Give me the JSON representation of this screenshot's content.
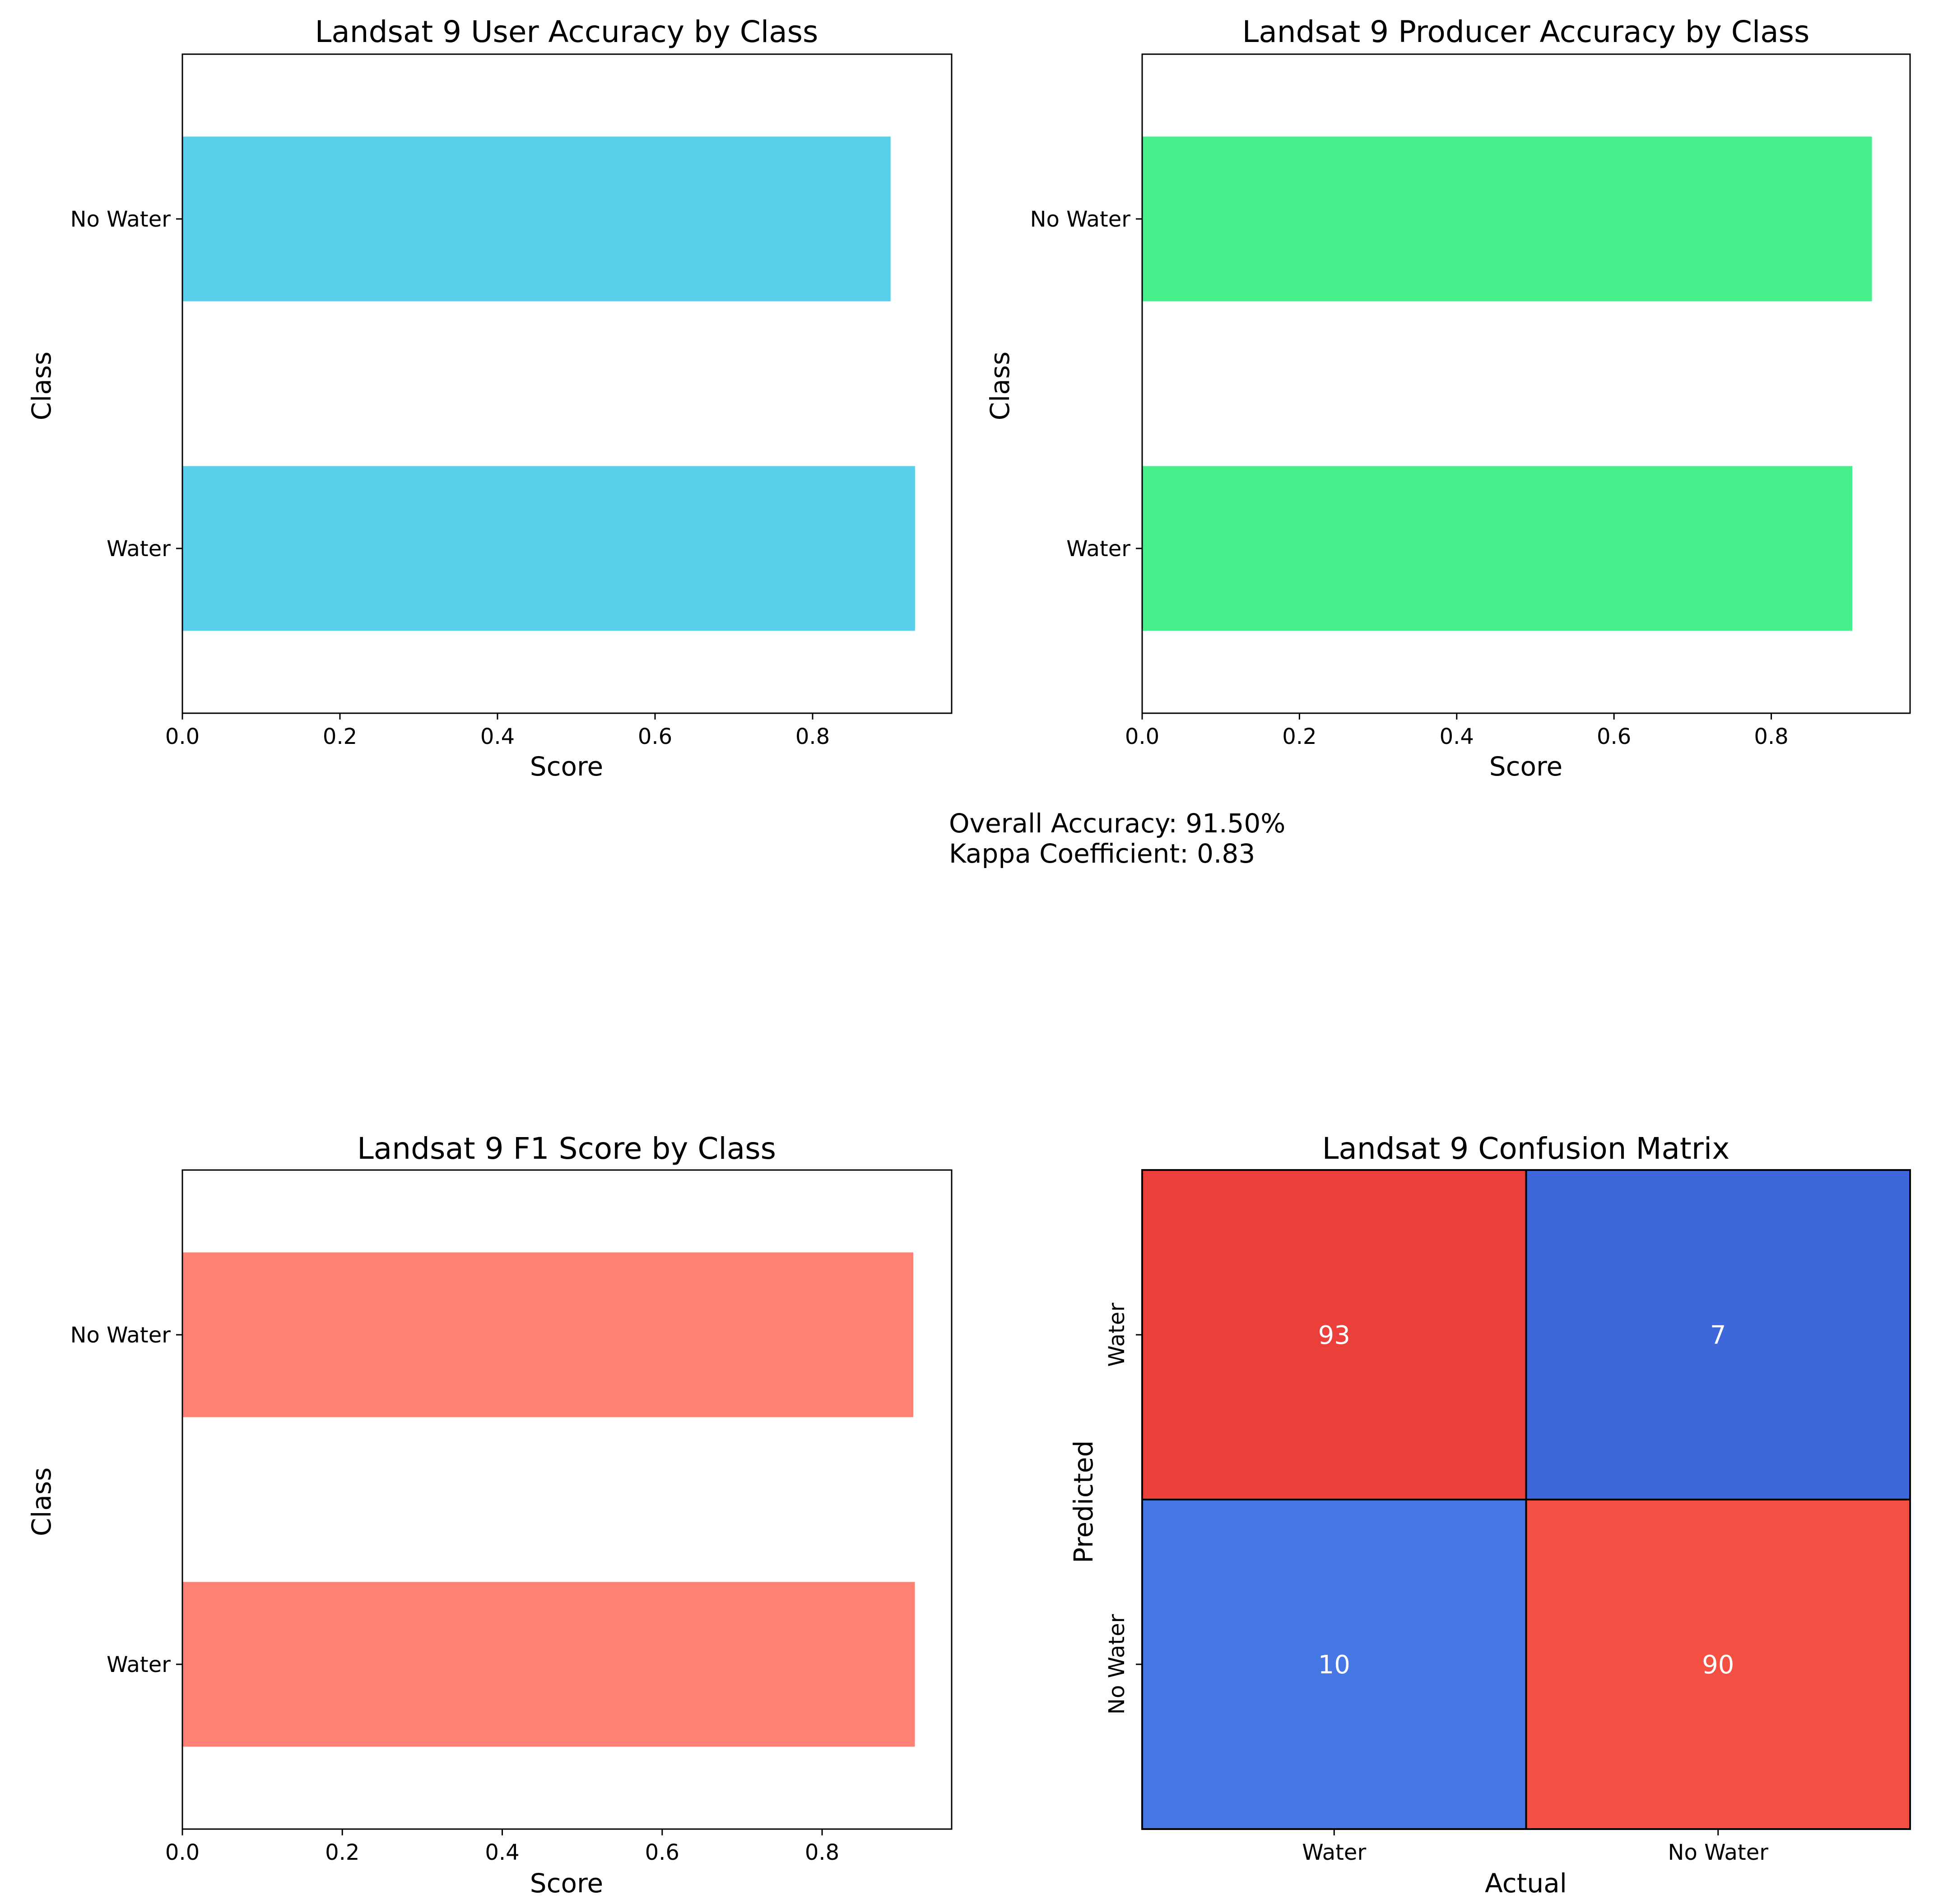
{
  "chart_data": [
    {
      "type": "bar",
      "orientation": "horizontal",
      "title": "Landsat 9 User Accuracy by Class",
      "xlabel": "Score",
      "ylabel": "Class",
      "categories": [
        "No Water",
        "Water"
      ],
      "values": [
        0.899,
        0.93
      ],
      "xlim": [
        0.0,
        0.9765
      ],
      "xticks": [
        "0.0",
        "0.2",
        "0.4",
        "0.6",
        "0.8"
      ],
      "color": "#5ACFEB"
    },
    {
      "type": "bar",
      "orientation": "horizontal",
      "title": "Landsat 9 Producer Accuracy by Class",
      "xlabel": "Score",
      "ylabel": "Class",
      "categories": [
        "No Water",
        "Water"
      ],
      "values": [
        0.928,
        0.903
      ],
      "xlim": [
        0.0,
        0.9765
      ],
      "xticks": [
        "0.0",
        "0.2",
        "0.4",
        "0.6",
        "0.8"
      ],
      "color": "#45F08C"
    },
    {
      "type": "bar",
      "orientation": "horizontal",
      "title": "Landsat 9 F1 Score by Class",
      "xlabel": "Score",
      "ylabel": "Class",
      "categories": [
        "No Water",
        "Water"
      ],
      "values": [
        0.914,
        0.916
      ],
      "xlim": [
        0.0,
        0.962
      ],
      "xticks": [
        "0.0",
        "0.2",
        "0.4",
        "0.6",
        "0.8"
      ],
      "color": "#FF8274"
    },
    {
      "type": "heatmap",
      "title": "Landsat 9 Confusion Matrix",
      "xlabel": "Actual",
      "ylabel": "Predicted",
      "row_labels": [
        "Water",
        "No Water"
      ],
      "col_labels": [
        "Water",
        "No Water"
      ],
      "values": [
        [
          93,
          7
        ],
        [
          10,
          90
        ]
      ],
      "cell_colors": [
        [
          "#EA3F3A",
          "#3E67DC"
        ],
        [
          "#4577E5",
          "#F44F43"
        ]
      ]
    }
  ],
  "summary": {
    "overall_accuracy": "Overall Accuracy: 91.50%",
    "kappa": "Kappa Coefficient: 0.83"
  }
}
